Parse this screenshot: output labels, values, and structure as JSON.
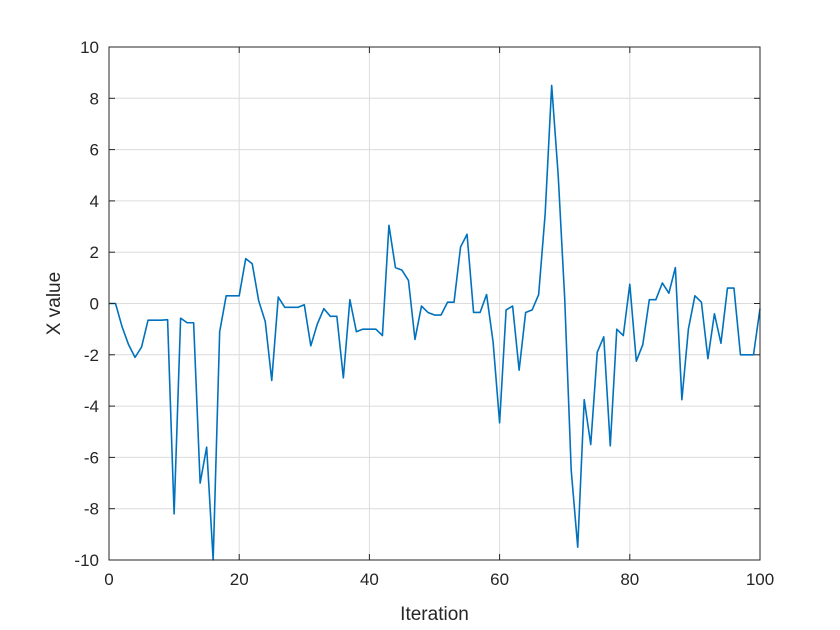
{
  "chart_data": {
    "type": "line",
    "title": "",
    "xlabel": "Iteration",
    "ylabel": "X value",
    "xlim": [
      0,
      100
    ],
    "ylim": [
      -10,
      10
    ],
    "x_ticks": [
      0,
      20,
      40,
      60,
      80,
      100
    ],
    "y_ticks": [
      -10,
      -8,
      -6,
      -4,
      -2,
      0,
      2,
      4,
      6,
      8,
      10
    ],
    "x_tick_labels": [
      "0",
      "20",
      "40",
      "60",
      "80",
      "100"
    ],
    "y_tick_labels": [
      "-10",
      "-8",
      "-6",
      "-4",
      "-2",
      "0",
      "2",
      "4",
      "6",
      "8",
      "10"
    ],
    "grid": true,
    "box": true,
    "colors": {
      "line": "#0072BD",
      "axes": "#262626",
      "grid": "#dcdcdc"
    },
    "series": [
      {
        "x": [
          0,
          1,
          2,
          3,
          4,
          5,
          6,
          7,
          8,
          9,
          10,
          11,
          12,
          13,
          14,
          15,
          16,
          17,
          18,
          19,
          20,
          21,
          22,
          23,
          24,
          25,
          26,
          27,
          28,
          29,
          30,
          31,
          32,
          33,
          34,
          35,
          36,
          37,
          38,
          39,
          40,
          41,
          42,
          43,
          44,
          45,
          46,
          47,
          48,
          49,
          50,
          51,
          52,
          53,
          54,
          55,
          56,
          57,
          58,
          59,
          60,
          61,
          62,
          63,
          64,
          65,
          66,
          67,
          68,
          69,
          70,
          71,
          72,
          73,
          74,
          75,
          76,
          77,
          78,
          79,
          80,
          81,
          82,
          83,
          84,
          85,
          86,
          87,
          88,
          89,
          90,
          91,
          92,
          93,
          94,
          95,
          96,
          97,
          98,
          99,
          100
        ],
        "y": [
          0.0,
          0.0,
          -0.9,
          -1.6,
          -2.1,
          -1.7,
          -0.65,
          -0.65,
          -0.65,
          -0.63,
          -8.2,
          -0.57,
          -0.75,
          -0.75,
          -7.0,
          -5.6,
          -10.0,
          -1.1,
          0.3,
          0.3,
          0.3,
          1.75,
          1.55,
          0.1,
          -0.7,
          -3.0,
          0.25,
          -0.15,
          -0.15,
          -0.15,
          -0.05,
          -1.65,
          -0.8,
          -0.2,
          -0.5,
          -0.5,
          -2.9,
          0.15,
          -1.1,
          -1.0,
          -1.0,
          -1.0,
          -1.25,
          3.05,
          1.4,
          1.3,
          0.9,
          -1.4,
          -0.1,
          -0.35,
          -0.45,
          -0.45,
          0.05,
          0.05,
          2.2,
          2.7,
          -0.35,
          -0.35,
          0.35,
          -1.5,
          -4.65,
          -0.25,
          -0.1,
          -2.6,
          -0.35,
          -0.25,
          0.35,
          3.5,
          8.5,
          5.0,
          0.2,
          -6.5,
          -9.5,
          -3.75,
          -5.5,
          -1.9,
          -1.3,
          -5.55,
          -1.0,
          -1.25,
          0.75,
          -2.25,
          -1.6,
          0.15,
          0.15,
          0.8,
          0.4,
          1.4,
          -3.75,
          -1.0,
          0.3,
          0.05,
          -2.15,
          -0.4,
          -1.55,
          0.6,
          0.6,
          -2.0,
          -2.0,
          -2.0,
          -0.2
        ]
      }
    ]
  }
}
